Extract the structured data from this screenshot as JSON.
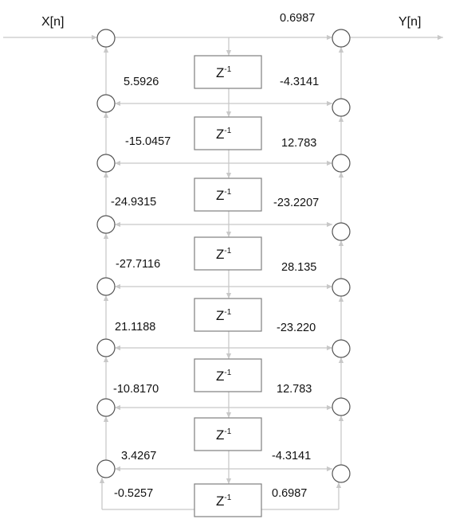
{
  "input_label": "X[n]",
  "output_label": "Y[n]",
  "delay_base": "Z",
  "delay_exp": "-1",
  "feedback_coeffs": [
    "5.5926",
    "-15.0457",
    "-24.9315",
    "-27.7116",
    "21.1188",
    "-10.8170",
    "3.4267",
    "-0.5257"
  ],
  "feedforward_coeffs": [
    "0.6987",
    "-4.3141",
    "12.783",
    "-23.2207",
    "28.135",
    "-23.220",
    "12.783",
    "-4.3141",
    "0.6987"
  ],
  "colors": {
    "line": "#c8c8c8",
    "node": "#555555",
    "box": "#7f7f7f",
    "text": "#111111"
  }
}
